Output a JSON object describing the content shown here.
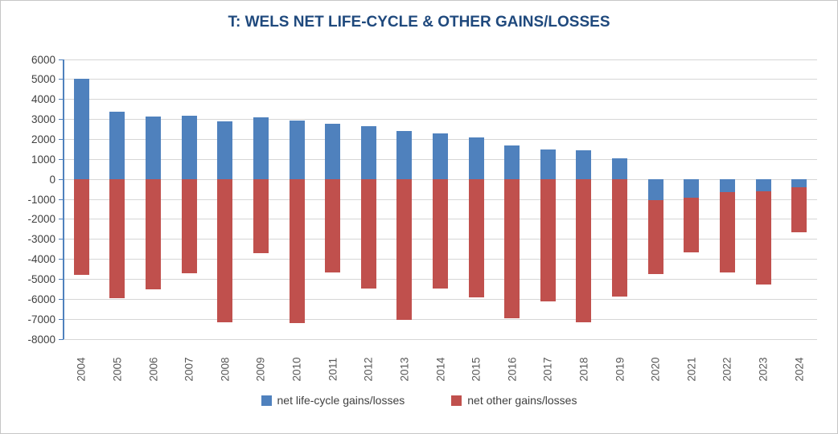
{
  "chart_data": {
    "type": "bar",
    "stacked": true,
    "title": "T: WELS NET LIFE-CYCLE & OTHER GAINS/LOSSES",
    "xlabel": "",
    "ylabel": "",
    "categories": [
      "2004",
      "2005",
      "2006",
      "2007",
      "2008",
      "2009",
      "2010",
      "2011",
      "2012",
      "2013",
      "2014",
      "2015",
      "2016",
      "2017",
      "2018",
      "2019",
      "2020",
      "2021",
      "2022",
      "2023",
      "2024"
    ],
    "series": [
      {
        "name": "net life-cycle gains/losses",
        "color": "#4F81BD",
        "values": [
          5050,
          3400,
          3150,
          3200,
          2900,
          3100,
          2950,
          2800,
          2650,
          2400,
          2300,
          2100,
          1700,
          1500,
          1450,
          1050,
          -1050,
          -900,
          -650,
          -600,
          -400
        ]
      },
      {
        "name": "net other gains/losses",
        "color": "#C0504D",
        "values": [
          -4800,
          -5950,
          -5500,
          -4700,
          -7150,
          -3700,
          -7200,
          -4650,
          -5450,
          -7050,
          -5450,
          -5900,
          -6950,
          -6100,
          -7150,
          -5850,
          -3700,
          -2750,
          -4000,
          -4650,
          -2250
        ]
      }
    ],
    "ylim": [
      -8000,
      6000
    ],
    "yticks": [
      6000,
      5000,
      4000,
      3000,
      2000,
      1000,
      0,
      -1000,
      -2000,
      -3000,
      -4000,
      -5000,
      -6000,
      -7000,
      -8000
    ],
    "grid": true,
    "legend_position": "bottom"
  },
  "colors": {
    "title": "#1F497D",
    "axis_line": "#4F81BD",
    "gridline": "#D6D6D6",
    "y_tick_label": "#3F3F3F",
    "x_tick_label": "#595959",
    "legend_text": "#404040",
    "background": "#FFFFFF",
    "frame_border": "#C6C6C6"
  }
}
